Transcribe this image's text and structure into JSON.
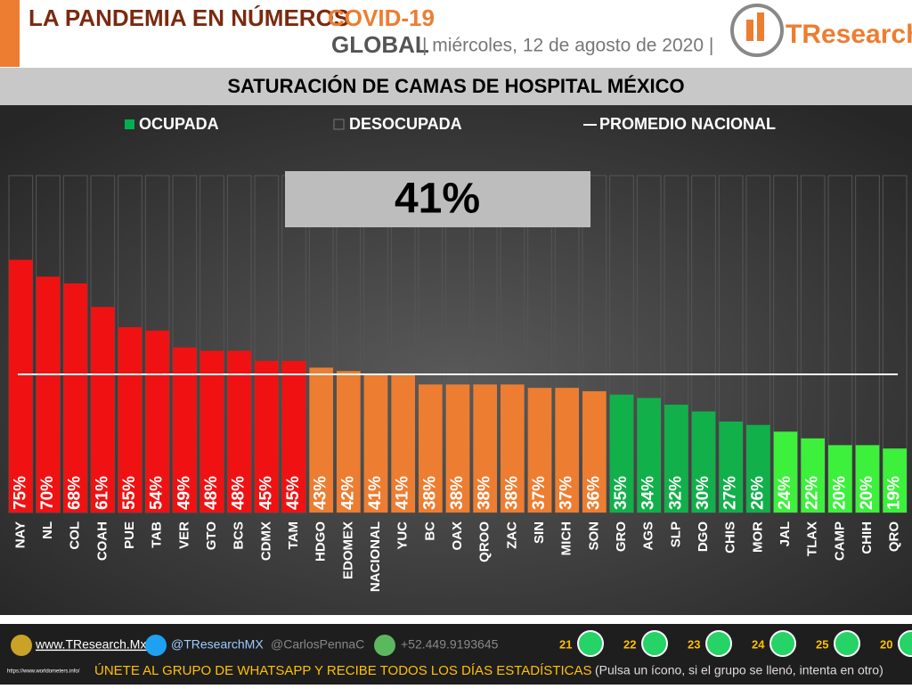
{
  "header": {
    "title": "LA PANDEMIA EN NÚMEROS",
    "title_accent": "COVID-19",
    "scope": "GLOBAL",
    "date": "| miércoles, 12 de agosto de 2020 |",
    "brand": "TResearch"
  },
  "chart_data": {
    "type": "bar",
    "title": "SATURACIÓN DE CAMAS DE HOSPITAL MÉXICO",
    "categories": [
      "NAY",
      "NL",
      "COL",
      "COAH",
      "PUE",
      "TAB",
      "VER",
      "GTO",
      "BCS",
      "CDMX",
      "TAM",
      "HDGO",
      "EDOMEX",
      "NACIONAL",
      "YUC",
      "BC",
      "OAX",
      "QROO",
      "ZAC",
      "SIN",
      "MICH",
      "SON",
      "GRO",
      "AGS",
      "SLP",
      "DGO",
      "CHIS",
      "MOR",
      "JAL",
      "TLAX",
      "CAMP",
      "CHIH",
      "QRO"
    ],
    "series": [
      {
        "name": "OCUPADA",
        "color": "#00b050",
        "values": [
          75,
          70,
          68,
          61,
          55,
          54,
          49,
          48,
          48,
          45,
          45,
          43,
          42,
          41,
          41,
          38,
          38,
          38,
          38,
          37,
          37,
          36,
          35,
          34,
          32,
          30,
          27,
          26,
          24,
          22,
          20,
          20,
          19
        ],
        "value_labels": [
          "75%",
          "70%",
          "68%",
          "61%",
          "55%",
          "54%",
          "49%",
          "48%",
          "48%",
          "45%",
          "45%",
          "43%",
          "42%",
          "41%",
          "41%",
          "38%",
          "38%",
          "38%",
          "38%",
          "37%",
          "37%",
          "36%",
          "35%",
          "34%",
          "32%",
          "30%",
          "27%",
          "26%",
          "24%",
          "22%",
          "20%",
          "20%",
          "19%"
        ],
        "colors": [
          "#f01212",
          "#f01212",
          "#f01212",
          "#f01212",
          "#f01212",
          "#f01212",
          "#f01212",
          "#f01212",
          "#f01212",
          "#f01212",
          "#f01212",
          "#ed7d31",
          "#ed7d31",
          "#ed7d31",
          "#ed7d31",
          "#ed7d31",
          "#ed7d31",
          "#ed7d31",
          "#ed7d31",
          "#ed7d31",
          "#ed7d31",
          "#ed7d31",
          "#12b04a",
          "#12b04a",
          "#12b04a",
          "#12b04a",
          "#12b04a",
          "#12b04a",
          "#3cf03c",
          "#3cf03c",
          "#3cf03c",
          "#3cf03c",
          "#3cf03c"
        ]
      }
    ],
    "legend_extra": [
      {
        "name": "DESOCUPADA"
      },
      {
        "name": "PROMEDIO NACIONAL"
      }
    ],
    "reference_line": {
      "value": 41,
      "label": "41%"
    },
    "ylim": [
      0,
      100
    ]
  },
  "footer": {
    "web": "www.TResearch.Mx",
    "twitter": "@TResearchMX",
    "twitter2": "@CarlosPennaC",
    "phone": "+52.449.9193645",
    "source": "https://www.worldometers.info/",
    "groups": [
      "21",
      "22",
      "23",
      "24",
      "25",
      "20"
    ],
    "cta": "ÚNETE AL GRUPO DE WHATSAPP Y RECIBE TODOS LOS DÍAS ESTADÍSTICAS",
    "note": "(Pulsa un ícono, si el grupo se llenó, intenta en otro)"
  }
}
